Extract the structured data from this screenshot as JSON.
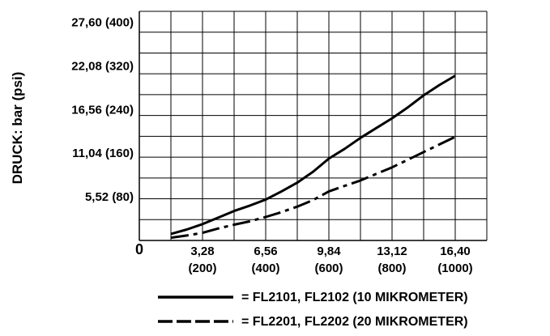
{
  "chart_data": {
    "type": "line",
    "ylabel": "DRUCK: bar (psi)",
    "origin_label": "0",
    "x_ticks": [
      {
        "value": 200,
        "line1": "3,28",
        "line2": "(200)"
      },
      {
        "value": 400,
        "line1": "6,56",
        "line2": "(400)"
      },
      {
        "value": 600,
        "line1": "9,84",
        "line2": "(600)"
      },
      {
        "value": 800,
        "line1": "13,12",
        "line2": "(800)"
      },
      {
        "value": 1000,
        "line1": "16,40",
        "line2": "(1000)"
      }
    ],
    "y_ticks": [
      {
        "value": 80,
        "label": "5,52 (80)"
      },
      {
        "value": 160,
        "label": "11,04 (160)"
      },
      {
        "value": 240,
        "label": "16,56 (240)"
      },
      {
        "value": 320,
        "label": "22,08 (320)"
      },
      {
        "value": 400,
        "label": "27,60 (400)"
      }
    ],
    "xlim": [
      0,
      1100
    ],
    "ylim": [
      0,
      420
    ],
    "grid": true,
    "series": [
      {
        "name": "= FL2101, FL2102 (10 MIKROMETER)",
        "style": "solid",
        "color": "#000000",
        "x": [
          100,
          150,
          200,
          250,
          300,
          350,
          400,
          450,
          500,
          550,
          600,
          650,
          700,
          750,
          800,
          850,
          900,
          950,
          1000
        ],
        "y": [
          12,
          20,
          30,
          42,
          54,
          64,
          75,
          90,
          106,
          126,
          150,
          168,
          188,
          206,
          224,
          244,
          266,
          285,
          302
        ]
      },
      {
        "name": "= FL2201, FL2202 (20 MIKROMETER)",
        "style": "dashed",
        "color": "#000000",
        "x": [
          100,
          150,
          200,
          250,
          300,
          350,
          400,
          450,
          500,
          550,
          600,
          650,
          700,
          750,
          800,
          850,
          900,
          950,
          1000
        ],
        "y": [
          5,
          9,
          14,
          22,
          29,
          35,
          43,
          52,
          62,
          74,
          90,
          100,
          110,
          122,
          134,
          148,
          162,
          176,
          190
        ]
      }
    ]
  }
}
